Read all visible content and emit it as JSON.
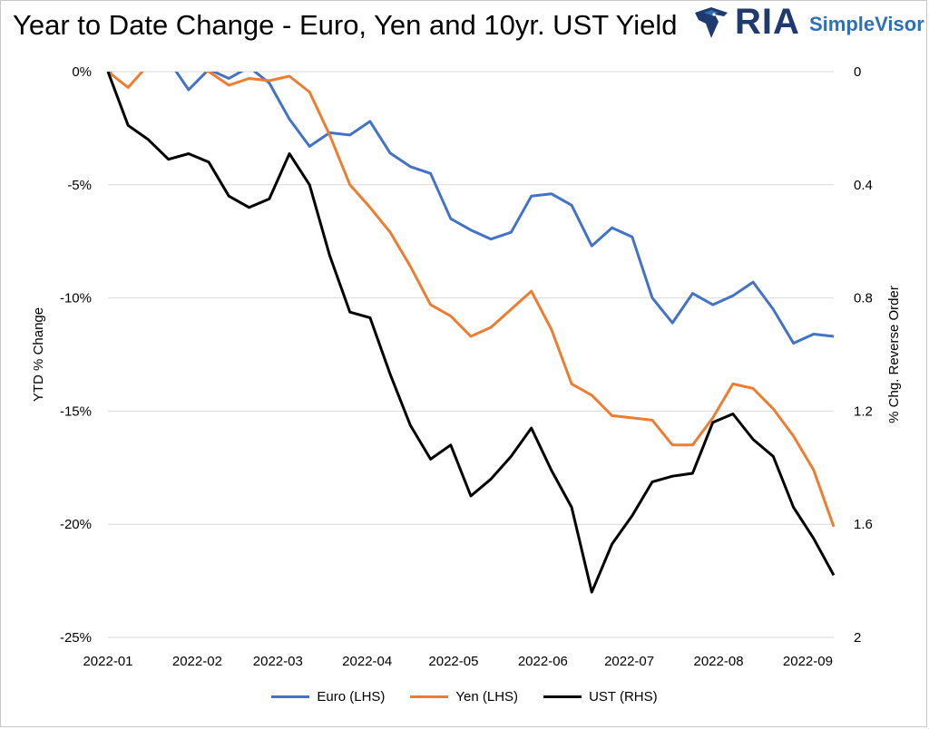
{
  "title": "Year to Date Change - Euro, Yen and 10yr. UST Yield",
  "logo": {
    "brand": "RIA",
    "product": "SimpleVisor",
    "icon": "eagle-icon"
  },
  "colors": {
    "euro": "#4472C4",
    "yen": "#ED7D31",
    "ust": "#000000",
    "grid": "#d9d9d9"
  },
  "chart_data": {
    "type": "line",
    "title": "Year to Date Change - Euro, Yen and 10yr. UST Yield",
    "x": [
      "2022-01-01",
      "2022-01-08",
      "2022-01-15",
      "2022-01-22",
      "2022-01-29",
      "2022-02-05",
      "2022-02-12",
      "2022-02-19",
      "2022-02-26",
      "2022-03-05",
      "2022-03-12",
      "2022-03-19",
      "2022-03-26",
      "2022-04-02",
      "2022-04-09",
      "2022-04-16",
      "2022-04-23",
      "2022-04-30",
      "2022-05-07",
      "2022-05-14",
      "2022-05-21",
      "2022-05-28",
      "2022-06-04",
      "2022-06-11",
      "2022-06-18",
      "2022-06-25",
      "2022-07-02",
      "2022-07-09",
      "2022-07-16",
      "2022-07-23",
      "2022-07-30",
      "2022-08-06",
      "2022-08-13",
      "2022-08-20",
      "2022-08-27",
      "2022-09-03",
      "2022-09-10"
    ],
    "x_ticks": [
      "2022-01",
      "2022-02",
      "2022-03",
      "2022-04",
      "2022-05",
      "2022-06",
      "2022-07",
      "2022-08",
      "2022-09"
    ],
    "ylabel_left": "YTD % Change",
    "ylabel_right": "% Chg. Reverse Order",
    "ylim_left": [
      -25,
      0
    ],
    "yticks_left": [
      "0%",
      "-5%",
      "-10%",
      "-15%",
      "-20%",
      "-25%"
    ],
    "ylim_right": [
      0,
      2
    ],
    "yticks_right": [
      "0",
      "0.4",
      "0.8",
      "1.2",
      "1.6",
      "2"
    ],
    "grid": true,
    "legend_position": "bottom",
    "series": [
      {
        "name": "Euro (LHS)",
        "axis": "left",
        "color": "#4472C4",
        "values": [
          0.0,
          0.2,
          1.0,
          0.5,
          -0.8,
          0.1,
          -0.3,
          0.2,
          -0.5,
          -2.1,
          -3.3,
          -2.7,
          -2.8,
          -2.2,
          -3.6,
          -4.2,
          -4.5,
          -6.5,
          -7.0,
          -7.4,
          -7.1,
          -5.5,
          -5.4,
          -5.9,
          -7.7,
          -6.9,
          -7.3,
          -10.0,
          -11.1,
          -9.8,
          -10.3,
          -9.9,
          -9.3,
          -10.5,
          -12.0,
          -11.6,
          -11.7
        ]
      },
      {
        "name": "Yen (LHS)",
        "axis": "left",
        "color": "#ED7D31",
        "values": [
          0.0,
          -0.7,
          0.3,
          0.6,
          0.2,
          0.0,
          -0.6,
          -0.3,
          -0.4,
          -0.2,
          -0.9,
          -2.8,
          -5.0,
          -6.0,
          -7.1,
          -8.6,
          -10.3,
          -10.8,
          -11.7,
          -11.3,
          -10.5,
          -9.7,
          -11.4,
          -13.8,
          -14.3,
          -15.2,
          -15.3,
          -15.4,
          -16.5,
          -16.5,
          -15.3,
          -13.8,
          -14.0,
          -14.9,
          -16.1,
          -17.6,
          -20.1
        ]
      },
      {
        "name": "UST (RHS)",
        "axis": "right",
        "color": "#000000",
        "values": [
          0.0,
          0.19,
          0.24,
          0.31,
          0.29,
          0.32,
          0.44,
          0.48,
          0.45,
          0.29,
          0.4,
          0.65,
          0.85,
          0.87,
          1.07,
          1.25,
          1.37,
          1.32,
          1.5,
          1.44,
          1.36,
          1.26,
          1.41,
          1.54,
          1.84,
          1.67,
          1.57,
          1.45,
          1.43,
          1.42,
          1.24,
          1.21,
          1.3,
          1.36,
          1.54,
          1.65,
          1.78
        ]
      }
    ]
  }
}
